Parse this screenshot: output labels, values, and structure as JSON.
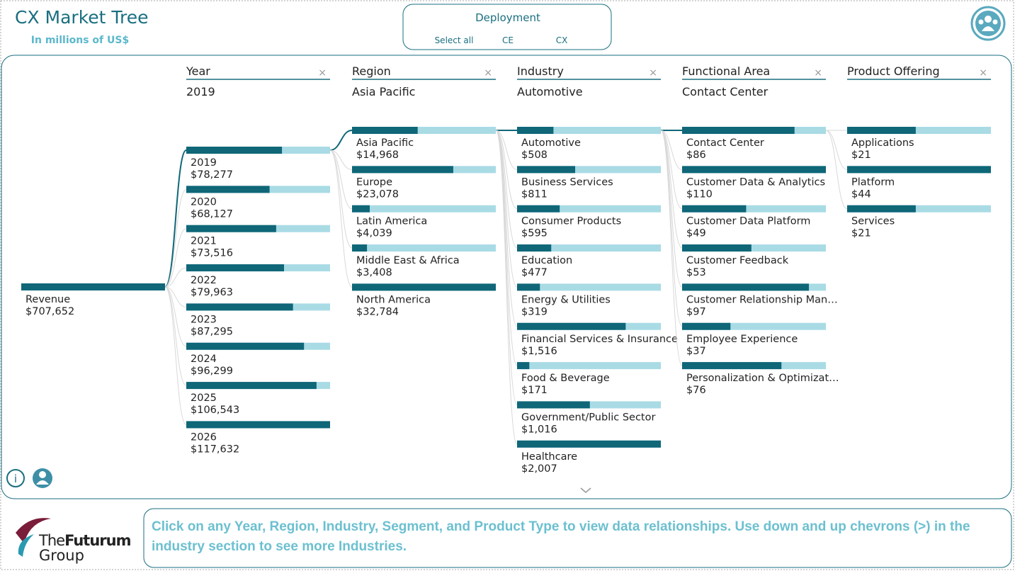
{
  "header": {
    "title": "CX Market Tree",
    "subtitle": "In millions of US$"
  },
  "slicer": {
    "title": "Deployment",
    "options": [
      "Select all",
      "CE",
      "CX"
    ]
  },
  "root": {
    "label": "Revenue",
    "value": 707652,
    "value_label": "$707,652"
  },
  "levels": [
    {
      "name": "Year",
      "selected": "2019",
      "items": [
        {
          "label": "2019",
          "value": 78277,
          "value_label": "$78,277"
        },
        {
          "label": "2020",
          "value": 68127,
          "value_label": "$68,127"
        },
        {
          "label": "2021",
          "value": 73516,
          "value_label": "$73,516"
        },
        {
          "label": "2022",
          "value": 79963,
          "value_label": "$79,963"
        },
        {
          "label": "2023",
          "value": 87295,
          "value_label": "$87,295"
        },
        {
          "label": "2024",
          "value": 96299,
          "value_label": "$96,299"
        },
        {
          "label": "2025",
          "value": 106543,
          "value_label": "$106,543"
        },
        {
          "label": "2026",
          "value": 117632,
          "value_label": "$117,632"
        }
      ]
    },
    {
      "name": "Region",
      "selected": "Asia Pacific",
      "items": [
        {
          "label": "Asia Pacific",
          "value": 14968,
          "value_label": "$14,968"
        },
        {
          "label": "Europe",
          "value": 23078,
          "value_label": "$23,078"
        },
        {
          "label": "Latin America",
          "value": 4039,
          "value_label": "$4,039"
        },
        {
          "label": "Middle East & Africa",
          "value": 3408,
          "value_label": "$3,408"
        },
        {
          "label": "North America",
          "value": 32784,
          "value_label": "$32,784"
        }
      ]
    },
    {
      "name": "Industry",
      "selected": "Automotive",
      "items": [
        {
          "label": "Automotive",
          "value": 508,
          "value_label": "$508"
        },
        {
          "label": "Business Services",
          "value": 811,
          "value_label": "$811"
        },
        {
          "label": "Consumer Products",
          "value": 595,
          "value_label": "$595"
        },
        {
          "label": "Education",
          "value": 477,
          "value_label": "$477"
        },
        {
          "label": "Energy & Utilities",
          "value": 319,
          "value_label": "$319"
        },
        {
          "label": "Financial Services & Insurance",
          "value": 1516,
          "value_label": "$1,516"
        },
        {
          "label": "Food & Beverage",
          "value": 171,
          "value_label": "$171"
        },
        {
          "label": "Government/Public Sector",
          "value": 1016,
          "value_label": "$1,016"
        },
        {
          "label": "Healthcare",
          "value": 2007,
          "value_label": "$2,007"
        }
      ]
    },
    {
      "name": "Functional Area",
      "selected": "Contact Center",
      "items": [
        {
          "label": "Contact Center",
          "value": 86,
          "value_label": "$86"
        },
        {
          "label": "Customer Data & Analytics",
          "value": 110,
          "value_label": "$110"
        },
        {
          "label": "Customer Data Platform",
          "value": 49,
          "value_label": "$49"
        },
        {
          "label": "Customer Feedback",
          "value": 53,
          "value_label": "$53"
        },
        {
          "label": "Customer Relationship Man…",
          "value": 97,
          "value_label": "$97"
        },
        {
          "label": "Employee Experience",
          "value": 37,
          "value_label": "$37"
        },
        {
          "label": "Personalization & Optimizat…",
          "value": 76,
          "value_label": "$76"
        }
      ]
    },
    {
      "name": "Product Offering",
      "items": [
        {
          "label": "Applications",
          "value": 21,
          "value_label": "$21"
        },
        {
          "label": "Platform",
          "value": 44,
          "value_label": "$44"
        },
        {
          "label": "Services",
          "value": 21,
          "value_label": "$21"
        }
      ]
    }
  ],
  "logo": {
    "prefix": "The",
    "brand": "Futurum",
    "suffix": "Group"
  },
  "footer": {
    "text": "Click on any Year, Region, Industry, Segment, and Product Type to view data relationships. Use down and up chevrons (>) in the industry section to see more Industries."
  }
}
